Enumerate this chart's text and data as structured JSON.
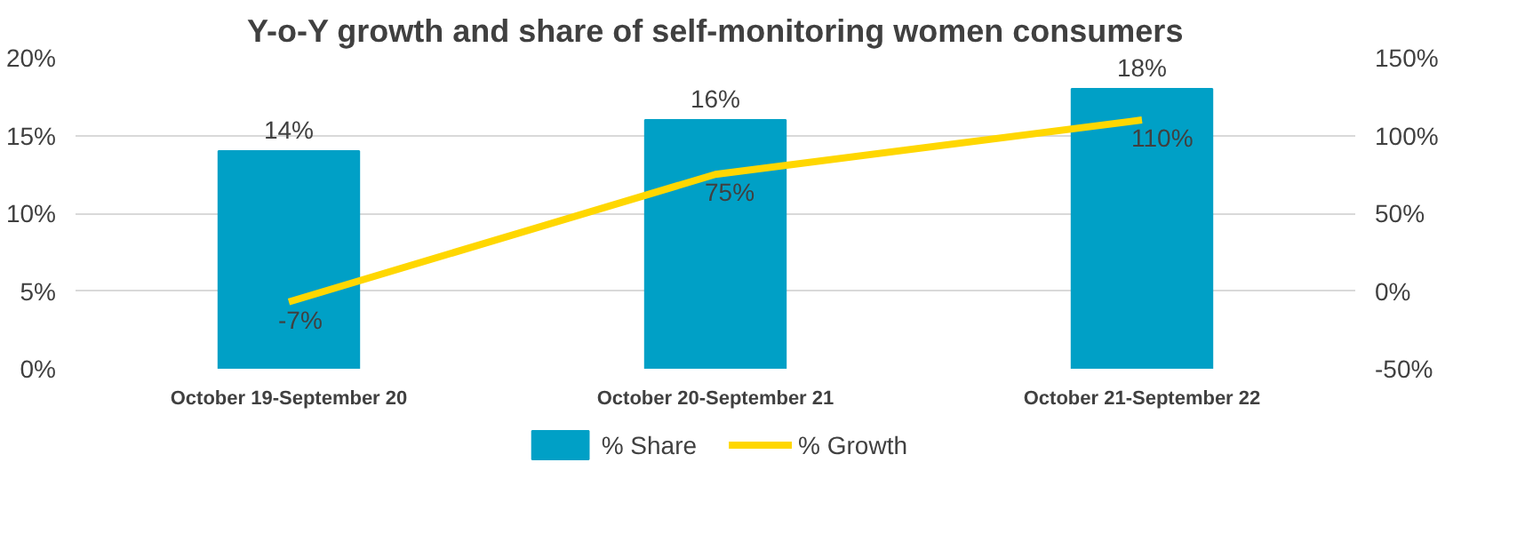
{
  "chart_data": {
    "type": "bar",
    "title": "Y-o-Y growth and share of self-monitoring women consumers",
    "categories": [
      "October 19-September 20",
      "October 20-September 21",
      "October 21-September 22"
    ],
    "series": [
      {
        "name": "% Share",
        "color": "#00a0c6",
        "values": [
          14,
          16,
          18
        ],
        "value_labels": [
          "14%",
          "16%",
          "18%"
        ]
      },
      {
        "name": "% Growth",
        "type": "line",
        "axis": "y2",
        "color": "#ffd700",
        "values": [
          -7,
          75,
          110
        ],
        "value_labels": [
          "-7%",
          "75%",
          "110%"
        ]
      }
    ],
    "ylim": [
      0,
      20
    ],
    "yticks": [
      {
        "value": 0,
        "label": "0%"
      },
      {
        "value": 5,
        "label": "5%"
      },
      {
        "value": 10,
        "label": "10%"
      },
      {
        "value": 15,
        "label": "15%"
      },
      {
        "value": 20,
        "label": "20%"
      }
    ],
    "y2lim": [
      -50,
      150
    ],
    "y2ticks": [
      {
        "value": -50,
        "label": "-50%"
      },
      {
        "value": 0,
        "label": "0%"
      },
      {
        "value": 50,
        "label": "50%"
      },
      {
        "value": 100,
        "label": "100%"
      },
      {
        "value": 150,
        "label": "150%"
      }
    ],
    "grid": "y",
    "legend": "bottom",
    "line_style": "solid",
    "marker": "none"
  }
}
